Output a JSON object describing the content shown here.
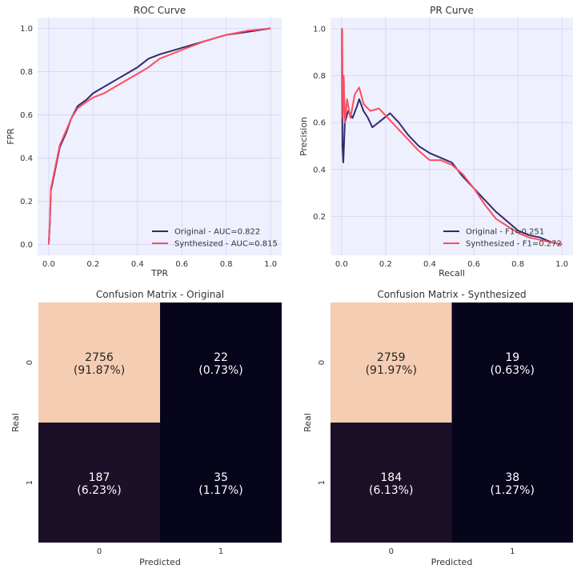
{
  "colors": {
    "original": "#34296e",
    "synthesized": "#ff4d5e",
    "plot_bg": "#eef0fd",
    "grid": "#d7d9fa",
    "cm_high": "#f5cdb3",
    "cm_mid": "#1c1028",
    "cm_low": "#07051c"
  },
  "chart_data": [
    {
      "type": "line",
      "title": "ROC Curve",
      "xlabel": "TPR",
      "ylabel": "FPR",
      "xlim": [
        -0.05,
        1.05
      ],
      "ylim": [
        -0.05,
        1.05
      ],
      "xticks": [
        "0.0",
        "0.2",
        "0.4",
        "0.6",
        "0.8",
        "1.0"
      ],
      "yticks": [
        "0.0",
        "0.2",
        "0.4",
        "0.6",
        "0.8",
        "1.0"
      ],
      "grid": true,
      "legend": "bottom-right",
      "series": [
        {
          "name": "Original - AUC=0.822",
          "x": [
            0,
            0.005,
            0.01,
            0.03,
            0.05,
            0.08,
            0.1,
            0.13,
            0.17,
            0.2,
            0.25,
            0.3,
            0.35,
            0.4,
            0.45,
            0.5,
            0.6,
            0.7,
            0.8,
            0.9,
            1.0
          ],
          "y": [
            0,
            0.1,
            0.25,
            0.35,
            0.45,
            0.52,
            0.58,
            0.64,
            0.67,
            0.7,
            0.73,
            0.76,
            0.79,
            0.82,
            0.86,
            0.88,
            0.91,
            0.94,
            0.97,
            0.985,
            1.0
          ]
        },
        {
          "name": "Synthesized - AUC=0.815",
          "x": [
            0,
            0.005,
            0.01,
            0.03,
            0.05,
            0.08,
            0.1,
            0.13,
            0.17,
            0.2,
            0.25,
            0.3,
            0.35,
            0.4,
            0.45,
            0.5,
            0.6,
            0.7,
            0.8,
            0.9,
            1.0
          ],
          "y": [
            0,
            0.1,
            0.26,
            0.36,
            0.46,
            0.53,
            0.58,
            0.63,
            0.66,
            0.68,
            0.7,
            0.73,
            0.76,
            0.79,
            0.82,
            0.86,
            0.9,
            0.94,
            0.97,
            0.99,
            1.0
          ]
        }
      ]
    },
    {
      "type": "line",
      "title": "PR Curve",
      "xlabel": "Recall",
      "ylabel": "Precision",
      "xlim": [
        -0.05,
        1.05
      ],
      "ylim": [
        0.034,
        1.048
      ],
      "xticks": [
        "0.0",
        "0.2",
        "0.4",
        "0.6",
        "0.8",
        "1.0"
      ],
      "yticks": [
        "0.2",
        "0.4",
        "0.6",
        "0.8",
        "1.0"
      ],
      "grid": true,
      "legend": "bottom-right",
      "series": [
        {
          "name": "Original - F1=0.251",
          "x": [
            0,
            0.002,
            0.004,
            0.008,
            0.015,
            0.03,
            0.05,
            0.07,
            0.08,
            0.1,
            0.12,
            0.14,
            0.18,
            0.22,
            0.26,
            0.3,
            0.35,
            0.4,
            0.45,
            0.5,
            0.55,
            0.6,
            0.65,
            0.7,
            0.75,
            0.8,
            0.85,
            0.9,
            0.95,
            1.0
          ],
          "y": [
            1,
            1,
            0.5,
            0.43,
            0.6,
            0.65,
            0.62,
            0.67,
            0.7,
            0.65,
            0.62,
            0.58,
            0.61,
            0.64,
            0.6,
            0.55,
            0.5,
            0.47,
            0.45,
            0.43,
            0.37,
            0.32,
            0.27,
            0.22,
            0.18,
            0.14,
            0.12,
            0.11,
            0.09,
            0.08
          ]
        },
        {
          "name": "Synthesized - F1=0.272",
          "x": [
            0,
            0.003,
            0.006,
            0.01,
            0.015,
            0.025,
            0.04,
            0.06,
            0.08,
            0.1,
            0.13,
            0.17,
            0.2,
            0.25,
            0.3,
            0.35,
            0.4,
            0.45,
            0.5,
            0.55,
            0.6,
            0.65,
            0.7,
            0.75,
            0.8,
            0.85,
            0.9,
            0.95,
            1.0
          ],
          "y": [
            1,
            1,
            0.62,
            0.8,
            0.6,
            0.7,
            0.62,
            0.72,
            0.75,
            0.68,
            0.65,
            0.66,
            0.63,
            0.58,
            0.53,
            0.48,
            0.44,
            0.44,
            0.42,
            0.38,
            0.32,
            0.25,
            0.19,
            0.16,
            0.13,
            0.11,
            0.1,
            0.09,
            0.08
          ]
        }
      ]
    },
    {
      "type": "heatmap",
      "title": "Confusion Matrix - Original",
      "xlabel": "Predicted",
      "ylabel": "Real",
      "xticks": [
        "0",
        "1"
      ],
      "yticks": [
        "0",
        "1"
      ],
      "values": [
        [
          2756,
          22
        ],
        [
          187,
          35
        ]
      ],
      "labels": [
        [
          "2756",
          "(91.87%)"
        ],
        [
          "22",
          "(0.73%)"
        ],
        [
          "187",
          "(6.23%)"
        ],
        [
          "35",
          "(1.17%)"
        ]
      ]
    },
    {
      "type": "heatmap",
      "title": "Confusion Matrix - Synthesized",
      "xlabel": "Predicted",
      "ylabel": "Real",
      "xticks": [
        "0",
        "1"
      ],
      "yticks": [
        "0",
        "1"
      ],
      "values": [
        [
          2759,
          19
        ],
        [
          184,
          38
        ]
      ],
      "labels": [
        [
          "2759",
          "(91.97%)"
        ],
        [
          "19",
          "(0.63%)"
        ],
        [
          "184",
          "(6.13%)"
        ],
        [
          "38",
          "(1.27%)"
        ]
      ]
    }
  ]
}
